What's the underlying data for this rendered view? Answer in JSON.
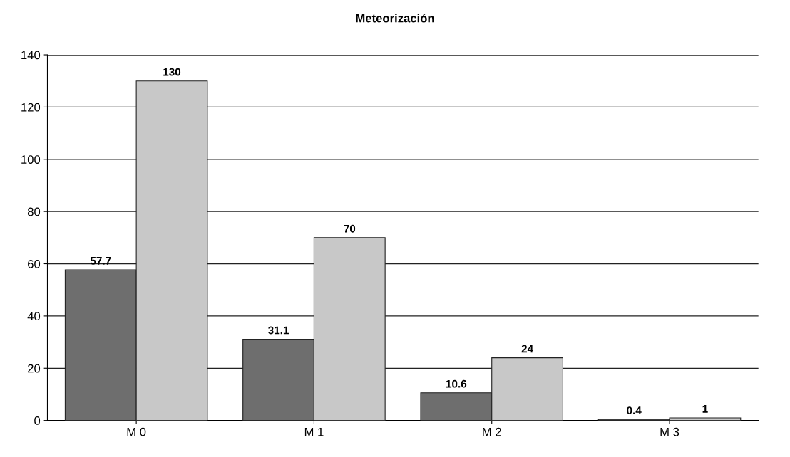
{
  "chart_data": {
    "type": "bar",
    "title": "Meteorización",
    "categories": [
      "M 0",
      "M 1",
      "M 2",
      "M 3"
    ],
    "series": [
      {
        "color": "#6e6e6e",
        "values": [
          57.7,
          31.1,
          10.6,
          0.4
        ]
      },
      {
        "color": "#c8c8c8",
        "values": [
          130,
          70,
          24,
          1
        ]
      }
    ],
    "ylim": [
      0,
      140
    ],
    "yticks": [
      0,
      20,
      40,
      60,
      80,
      100,
      120,
      140
    ],
    "grid": "y",
    "data_labels": true
  }
}
